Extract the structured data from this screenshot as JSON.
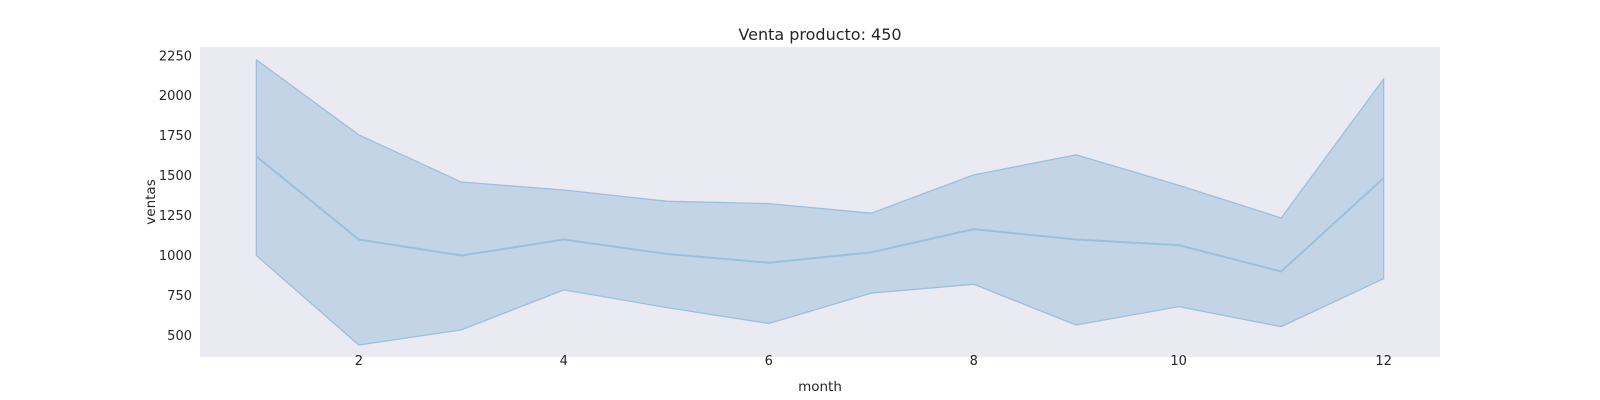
{
  "chart_data": {
    "type": "line",
    "title": "Venta producto: 450",
    "xlabel": "month",
    "ylabel": "ventas",
    "x": [
      1,
      2,
      3,
      4,
      5,
      6,
      7,
      8,
      9,
      10,
      11,
      12
    ],
    "series": [
      {
        "values": [
          1620,
          1100,
          1000,
          1100,
          1010,
          955,
          1020,
          1165,
          1100,
          1065,
          900,
          1485
        ],
        "lower": [
          1000,
          440,
          535,
          785,
          675,
          575,
          765,
          820,
          565,
          680,
          555,
          855
        ],
        "upper": [
          2225,
          1755,
          1460,
          1410,
          1340,
          1325,
          1265,
          1505,
          1630,
          1440,
          1235,
          2105
        ]
      }
    ],
    "xticks": [
      2,
      4,
      6,
      8,
      10,
      12
    ],
    "yticks": [
      500,
      750,
      1000,
      1250,
      1500,
      1750,
      2000,
      2250
    ],
    "xlim": [
      0.45,
      12.55
    ],
    "ylim": [
      365,
      2305
    ],
    "grid": false,
    "colors": {
      "plot_background": "#eaeaf2",
      "line": "#9ebfdc",
      "band": "#b5cce2"
    }
  }
}
